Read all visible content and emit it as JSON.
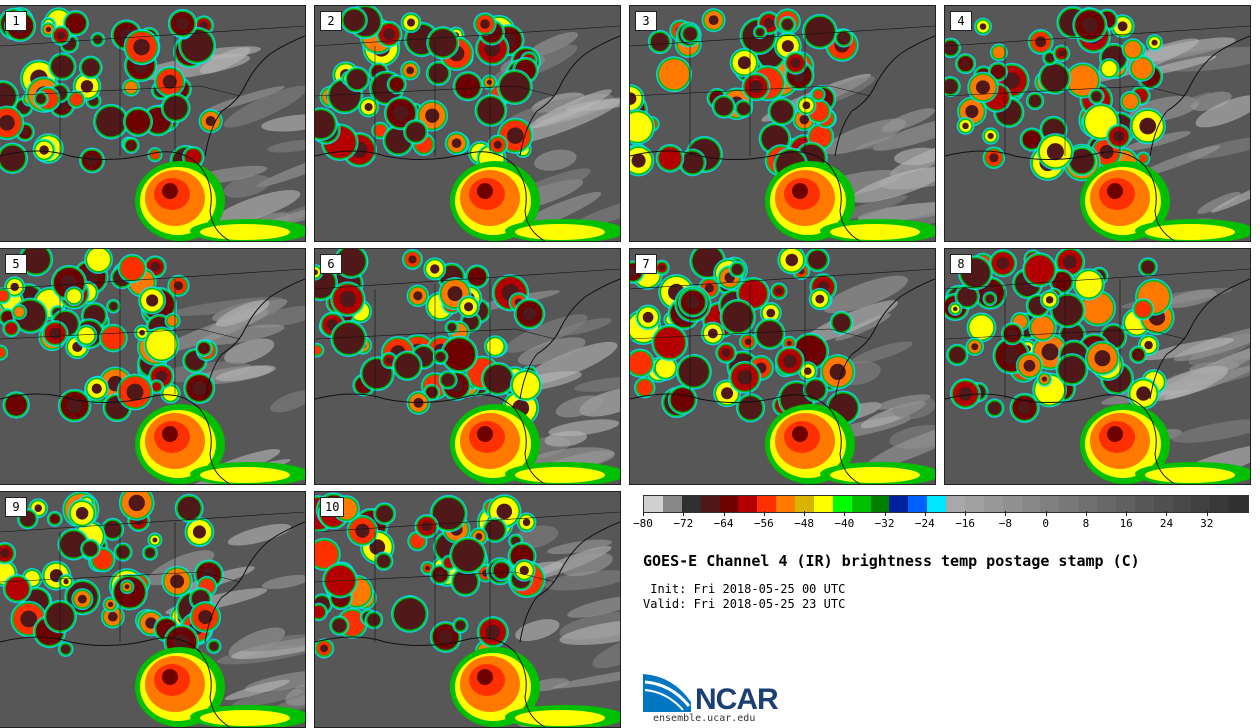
{
  "stamps": [
    {
      "label": "1"
    },
    {
      "label": "2"
    },
    {
      "label": "3"
    },
    {
      "label": "4"
    },
    {
      "label": "5"
    },
    {
      "label": "6"
    },
    {
      "label": "7"
    },
    {
      "label": "8"
    },
    {
      "label": "9"
    },
    {
      "label": "10"
    }
  ],
  "colorbar": {
    "colors": [
      "#d0d0d0",
      "#888888",
      "#303030",
      "#501818",
      "#6e0000",
      "#b40000",
      "#ff3000",
      "#ff7800",
      "#d8b400",
      "#ffff00",
      "#00ff00",
      "#00c000",
      "#008000",
      "#0020a0",
      "#0060ff",
      "#00e8ff",
      "#a8a8a8",
      "#a0a0a0",
      "#989898",
      "#909090",
      "#888888",
      "#808080",
      "#787878",
      "#707070",
      "#686868",
      "#606060",
      "#585858",
      "#505050",
      "#484848",
      "#404040",
      "#383838",
      "#303030"
    ],
    "tick_labels": [
      "−80",
      "−72",
      "−64",
      "−56",
      "−48",
      "−40",
      "−32",
      "−24",
      "−16",
      "−8",
      "0",
      "8",
      "16",
      "24",
      "32"
    ],
    "min": -80,
    "max": 40,
    "tick_step": 8
  },
  "title": "GOES-E Channel 4 (IR) brightness temp postage stamp (C)",
  "init": " Init: Fri 2018-05-25 00 UTC",
  "valid": "Valid: Fri 2018-05-25 23 UTC",
  "logo": {
    "text": "NCAR",
    "url": "ensemble.ucar.edu",
    "brand_color": "#1b3f73",
    "swoosh_color": "#0077c0"
  }
}
